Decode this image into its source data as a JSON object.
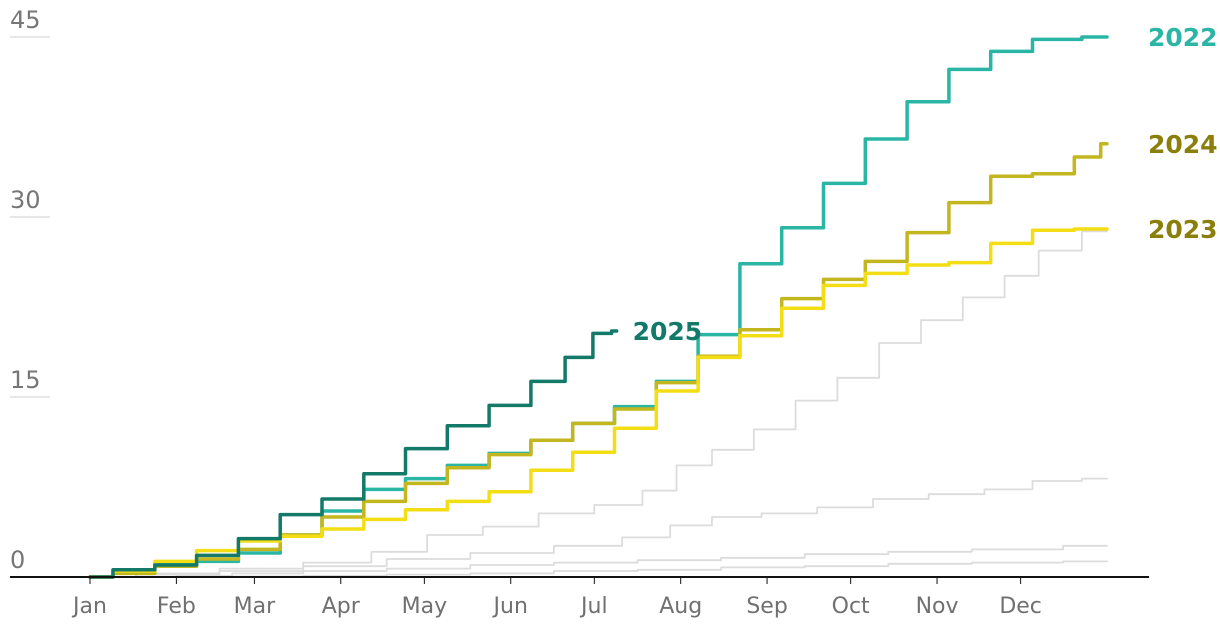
{
  "chart_data": {
    "type": "line",
    "title": "",
    "xlabel": "",
    "ylabel": "",
    "x_unit": "day of year",
    "xlim": [
      0,
      365
    ],
    "ylim": [
      0,
      45
    ],
    "y_ticks": [
      "0",
      "15",
      "30",
      "45"
    ],
    "y_tick_values": [
      0,
      15,
      30,
      45
    ],
    "x_ticks": [
      "Jan",
      "Feb",
      "Mar",
      "Apr",
      "May",
      "Jun",
      "Jul",
      "Aug",
      "Sep",
      "Oct",
      "Nov",
      "Dec"
    ],
    "x_tick_values": [
      0,
      31,
      59,
      90,
      120,
      151,
      181,
      212,
      243,
      273,
      304,
      334
    ],
    "grid": true,
    "legend": "labels at line ends",
    "series": [
      {
        "name": "",
        "color": "#dcdcdc",
        "highlighted": false,
        "x": [
          0,
          20,
          40,
          60,
          90,
          120,
          150,
          180,
          210,
          240,
          270,
          300,
          330,
          365
        ],
        "y": [
          0,
          0,
          0,
          0.05,
          0.1,
          0.2,
          0.3,
          0.5,
          0.6,
          0.8,
          0.9,
          1.1,
          1.2,
          1.3
        ]
      },
      {
        "name": "",
        "color": "#dcdcdc",
        "highlighted": false,
        "x": [
          0,
          20,
          40,
          60,
          90,
          120,
          150,
          180,
          210,
          240,
          270,
          300,
          330,
          365
        ],
        "y": [
          0,
          0,
          0.1,
          0.3,
          0.5,
          0.7,
          1.0,
          1.2,
          1.4,
          1.6,
          1.9,
          2.1,
          2.3,
          2.6
        ]
      },
      {
        "name": "",
        "color": "#dcdcdc",
        "highlighted": false,
        "x": [
          0,
          30,
          60,
          90,
          120,
          150,
          180,
          200,
          215,
          230,
          250,
          270,
          290,
          310,
          330,
          345,
          365
        ],
        "y": [
          0,
          0.2,
          0.5,
          0.9,
          1.5,
          2.0,
          2.6,
          3.3,
          4.3,
          5.0,
          5.3,
          5.8,
          6.5,
          6.9,
          7.3,
          8.0,
          8.2
        ]
      },
      {
        "name": "",
        "color": "#dcdcdc",
        "highlighted": false,
        "x": [
          0,
          30,
          60,
          90,
          110,
          130,
          150,
          170,
          190,
          205,
          215,
          230,
          245,
          260,
          275,
          290,
          305,
          320,
          335,
          345,
          365
        ],
        "y": [
          0,
          0.3,
          0.7,
          1.2,
          2.1,
          3.5,
          4.2,
          5.3,
          6.0,
          7.2,
          9.3,
          10.6,
          12.3,
          14.7,
          16.6,
          19.5,
          21.4,
          23.3,
          25.1,
          27.2,
          28.8
        ]
      },
      {
        "name": "2022",
        "color": "#2bb5a5",
        "highlighted": true,
        "x": [
          0,
          15,
          30,
          45,
          60,
          75,
          90,
          105,
          120,
          135,
          150,
          165,
          180,
          195,
          210,
          225,
          240,
          255,
          270,
          285,
          300,
          315,
          330,
          345,
          365
        ],
        "y": [
          0,
          0.5,
          1.2,
          1.3,
          2.0,
          3.5,
          5.5,
          7.3,
          8.2,
          9.3,
          10.3,
          11.4,
          12.8,
          14.2,
          16.3,
          20.2,
          26.1,
          29.1,
          32.8,
          36.5,
          39.6,
          42.3,
          43.8,
          44.8,
          45.0
        ]
      },
      {
        "name": "2024",
        "color": "#c4b61e",
        "highlighted": true,
        "x": [
          0,
          15,
          30,
          45,
          60,
          75,
          90,
          105,
          120,
          135,
          150,
          165,
          180,
          195,
          210,
          225,
          240,
          255,
          270,
          285,
          300,
          315,
          330,
          345,
          360,
          365
        ],
        "y": [
          0,
          0.3,
          0.9,
          1.5,
          2.3,
          3.5,
          5.0,
          6.3,
          7.8,
          9.1,
          10.2,
          11.4,
          12.8,
          14.0,
          16.2,
          18.4,
          20.6,
          23.2,
          24.8,
          26.3,
          28.7,
          31.2,
          33.4,
          33.6,
          35.0,
          36.1
        ]
      },
      {
        "name": "2023",
        "color": "#f3dd14",
        "highlighted": true,
        "x": [
          0,
          15,
          30,
          45,
          60,
          75,
          90,
          105,
          120,
          135,
          150,
          165,
          180,
          195,
          210,
          225,
          240,
          255,
          270,
          285,
          300,
          315,
          330,
          345,
          360,
          365
        ],
        "y": [
          0,
          0.5,
          1.3,
          2.2,
          3.0,
          3.4,
          4.0,
          4.8,
          5.6,
          6.3,
          7.1,
          8.9,
          10.4,
          12.4,
          15.5,
          18.3,
          20.1,
          22.4,
          24.3,
          25.3,
          26.0,
          26.2,
          27.8,
          28.9,
          29.0,
          29.0
        ]
      },
      {
        "name": "2025",
        "color": "#137a6a",
        "highlighted": true,
        "x": [
          0,
          15,
          30,
          45,
          60,
          75,
          90,
          105,
          120,
          135,
          150,
          165,
          175,
          185,
          189
        ],
        "y": [
          0,
          0.6,
          1.0,
          1.8,
          3.2,
          5.2,
          6.5,
          8.6,
          10.7,
          12.6,
          14.3,
          16.3,
          18.3,
          20.3,
          20.5
        ]
      }
    ]
  }
}
